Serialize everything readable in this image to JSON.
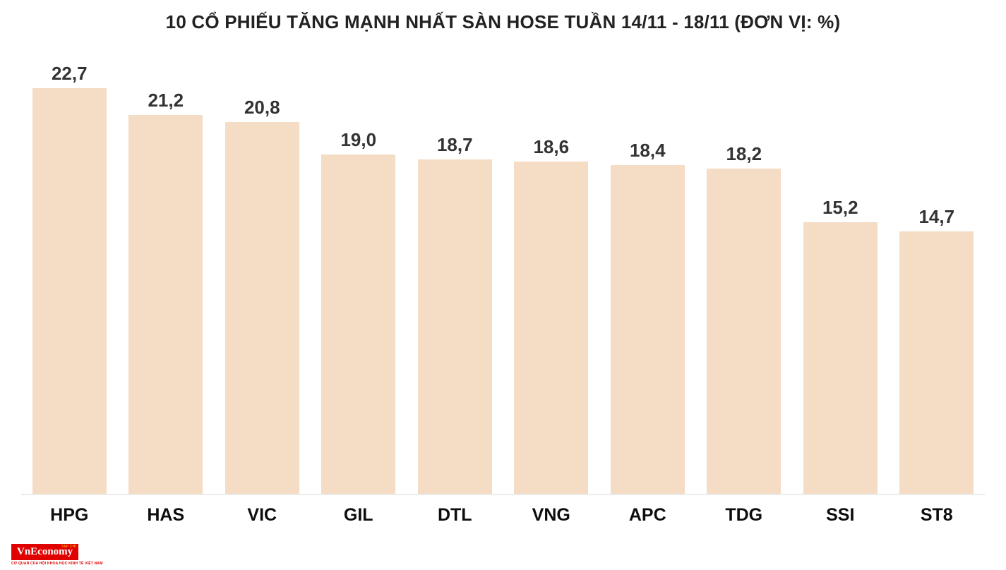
{
  "chart_data": {
    "type": "bar",
    "title": "10 CỔ PHIẾU TĂNG MẠNH NHẤT SÀN HOSE TUẦN 14/11 - 18/11 (ĐƠN VỊ: %)",
    "categories": [
      "HPG",
      "HAS",
      "VIC",
      "GIL",
      "DTL",
      "VNG",
      "APC",
      "TDG",
      "SSI",
      "ST8"
    ],
    "values": [
      22.7,
      21.2,
      20.8,
      19.0,
      18.7,
      18.6,
      18.4,
      18.2,
      15.2,
      14.7
    ],
    "value_labels": [
      "22,7",
      "21,2",
      "20,8",
      "19,0",
      "18,7",
      "18,6",
      "18,4",
      "18,2",
      "15,2",
      "14,7"
    ],
    "unit": "%",
    "xlabel": "",
    "ylabel": "",
    "ylim": [
      0,
      23.5
    ],
    "grid": false,
    "legend": false,
    "bar_color": "#f5dcc4",
    "value_label_color": "#333333",
    "category_label_color": "#0d0d0d"
  },
  "logo": {
    "name": "VnEconomy",
    "topline": "TẠP CHÍ",
    "tagline": "CƠ QUAN CỦA HỘI KHOA HỌC KINH TẾ VIỆT NAM",
    "bg_color": "#e00000"
  }
}
